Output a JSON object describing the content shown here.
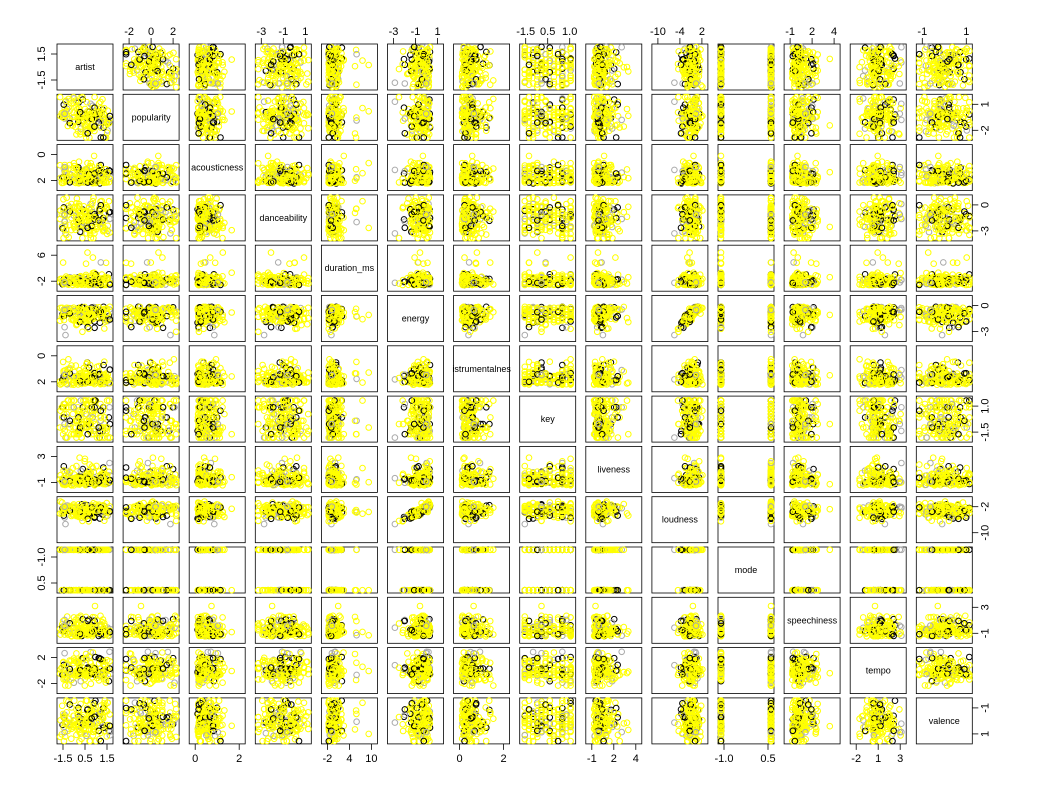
{
  "chart_data": {
    "type": "scatter",
    "subtype": "scatterplot-matrix",
    "variables": [
      "artist",
      "popularity",
      "acousticness",
      "danceability",
      "duration_ms",
      "energy",
      "istrumentalnes",
      "key",
      "liveness",
      "loudness",
      "mode",
      "speechiness",
      "tempo",
      "valence"
    ],
    "axis_tick_labels": {
      "artist": [
        "-1.5",
        "0.5",
        "1.5",
        "-1.5"
      ],
      "popularity": [
        "-2",
        "0",
        "2",
        "1",
        "-2"
      ],
      "acousticness": [
        "0",
        "2"
      ],
      "danceability": [
        "-3",
        "-1",
        "1",
        "0",
        "-3"
      ],
      "duration_ms": [
        "-2",
        "4",
        "10",
        "6",
        "-2"
      ],
      "energy": [
        "-3",
        "-1",
        "1",
        "0",
        "-3"
      ],
      "istrumentalnes": [
        "0",
        "2"
      ],
      "key": [
        "-1.5",
        "0.5",
        "1.0",
        "-1.5"
      ],
      "liveness": [
        "-1",
        "2",
        "4",
        "3",
        "-1"
      ],
      "loudness": [
        "-10",
        "-4",
        "2",
        "-2",
        "-10"
      ],
      "mode": [
        "-1.0",
        "0.5"
      ],
      "speechiness": [
        "-1",
        "2",
        "4",
        "3",
        "-1"
      ],
      "tempo": [
        "-2",
        "1",
        "3",
        "2",
        "-2"
      ],
      "valence": [
        "-1",
        "1"
      ]
    },
    "point_colors": [
      "#ffff00",
      "#000000",
      "#aaaaaa"
    ],
    "marker": "open-circle",
    "grid": false,
    "legend": "none"
  }
}
